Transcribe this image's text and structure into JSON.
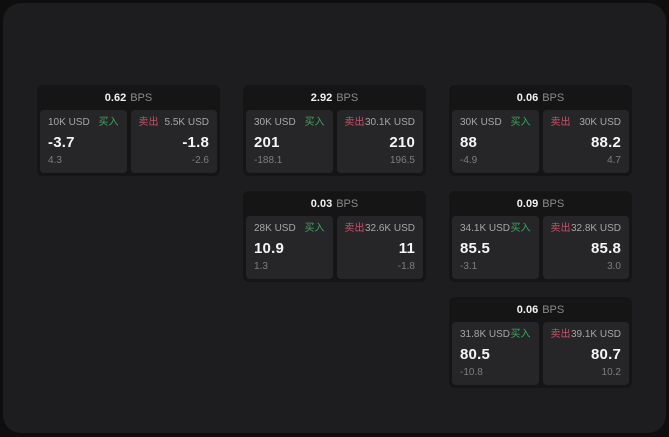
{
  "labels": {
    "bps_unit": "BPS",
    "buy": "买入",
    "sell": "卖出"
  },
  "colors": {
    "buy_green": "#3aa75c",
    "sell_red": "#c9516b",
    "window_bg": "#1d1d1f",
    "card_bg": "#151516",
    "panel_bg": "#262628"
  },
  "cards": [
    {
      "bps": "0.62",
      "buy": {
        "amount": "10K USD",
        "price": "-3.7",
        "delta": "4.3"
      },
      "sell": {
        "amount": "5.5K USD",
        "price": "-1.8",
        "delta": "-2.6"
      }
    },
    {
      "bps": "2.92",
      "buy": {
        "amount": "30K USD",
        "price": "201",
        "delta": "-188.1"
      },
      "sell": {
        "amount": "30.1K USD",
        "price": "210",
        "delta": "196.5"
      }
    },
    {
      "bps": "0.06",
      "buy": {
        "amount": "30K USD",
        "price": "88",
        "delta": "-4.9"
      },
      "sell": {
        "amount": "30K USD",
        "price": "88.2",
        "delta": "4.7"
      }
    },
    {
      "bps": "0.03",
      "buy": {
        "amount": "28K USD",
        "price": "10.9",
        "delta": "1.3"
      },
      "sell": {
        "amount": "32.6K USD",
        "price": "11",
        "delta": "-1.8"
      }
    },
    {
      "bps": "0.09",
      "buy": {
        "amount": "34.1K USD",
        "price": "85.5",
        "delta": "-3.1"
      },
      "sell": {
        "amount": "32.8K USD",
        "price": "85.8",
        "delta": "3.0"
      }
    },
    {
      "bps": "0.06",
      "buy": {
        "amount": "31.8K USD",
        "price": "80.5",
        "delta": "-10.8"
      },
      "sell": {
        "amount": "39.1K USD",
        "price": "80.7",
        "delta": "10.2"
      }
    }
  ]
}
